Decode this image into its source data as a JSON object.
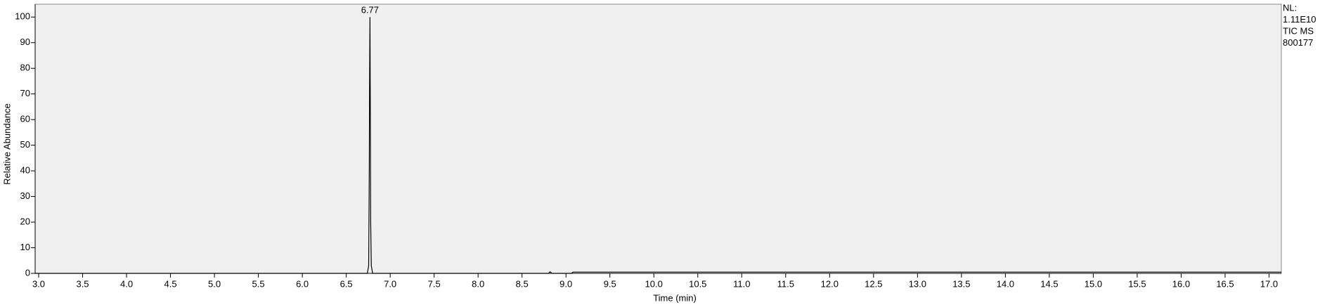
{
  "chart_data": {
    "type": "line",
    "x_label": "Time (min)",
    "y_label": "Relative Abundance",
    "side_text": [
      "NL:",
      "1.11E10",
      "TIC  MS",
      "800177"
    ],
    "peak_labels": [
      6.77
    ],
    "xlim": [
      2.96,
      17.14
    ],
    "ylim": [
      0,
      105
    ],
    "xticks": [
      {
        "value": 3,
        "label": "3.0"
      },
      {
        "value": 3.5,
        "label": "3.5"
      },
      {
        "value": 4,
        "label": "4.0"
      },
      {
        "value": 4.5,
        "label": "4.5"
      },
      {
        "value": 5,
        "label": "5.0"
      },
      {
        "value": 5.5,
        "label": "5.5"
      },
      {
        "value": 6,
        "label": "6.0"
      },
      {
        "value": 6.5,
        "label": "6.5"
      },
      {
        "value": 7,
        "label": "7.0"
      },
      {
        "value": 7.5,
        "label": "7.5"
      },
      {
        "value": 8,
        "label": "8.0"
      },
      {
        "value": 8.5,
        "label": "8.5"
      },
      {
        "value": 9,
        "label": "9.0"
      },
      {
        "value": 9.5,
        "label": "9.5"
      },
      {
        "value": 10,
        "label": "10.0"
      },
      {
        "value": 10.5,
        "label": "10.5"
      },
      {
        "value": 11,
        "label": "11.0"
      },
      {
        "value": 11.5,
        "label": "11.5"
      },
      {
        "value": 12,
        "label": "12.0"
      },
      {
        "value": 12.5,
        "label": "12.5"
      },
      {
        "value": 13,
        "label": "13.0"
      },
      {
        "value": 13.5,
        "label": "13.5"
      },
      {
        "value": 14,
        "label": "14.0"
      },
      {
        "value": 14.5,
        "label": "14.5"
      },
      {
        "value": 15,
        "label": "15.0"
      },
      {
        "value": 15.5,
        "label": "15.5"
      },
      {
        "value": 16,
        "label": "16.0"
      },
      {
        "value": 16.5,
        "label": "16.5"
      },
      {
        "value": 17,
        "label": "17.0"
      }
    ],
    "yticks": [
      0,
      10,
      20,
      30,
      40,
      50,
      60,
      70,
      80,
      90,
      100
    ],
    "series": [
      {
        "color": "#000000",
        "x": [
          2.96,
          6.74,
          6.755,
          6.762,
          6.765,
          6.768,
          6.77,
          6.772,
          6.775,
          6.778,
          6.785,
          6.8,
          8.8,
          8.82,
          8.84,
          9.06,
          9.08,
          17.14
        ],
        "values": [
          0,
          0,
          3,
          40,
          72,
          90,
          100,
          80,
          55,
          20,
          3,
          0,
          0,
          0.6,
          0,
          0,
          0.5,
          0.5
        ]
      }
    ]
  }
}
